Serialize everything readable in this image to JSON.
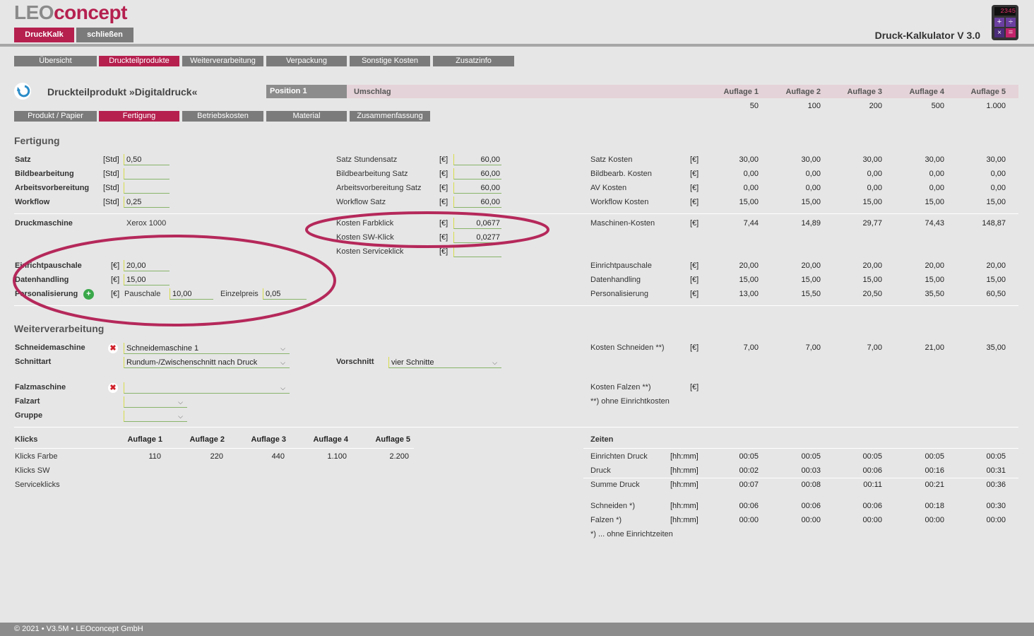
{
  "header": {
    "logo_part1": "LEO",
    "logo_part2": "concept",
    "btn_calc": "DruckKalk",
    "btn_close": "schließen",
    "app_title": "Druck-Kalkulator V 3.0",
    "calc_display": "2345"
  },
  "main_tabs": [
    "Übersicht",
    "Druckteilprodukte",
    "Weiterverarbeitung",
    "Verpackung",
    "Sonstige Kosten",
    "Zusatzinfo"
  ],
  "product": {
    "title": "Druckteilprodukt »Digitaldruck«",
    "position": "Position 1",
    "position_name": "Umschlag",
    "auflage_headers": [
      "Auflage 1",
      "Auflage 2",
      "Auflage 3",
      "Auflage 4",
      "Auflage 5"
    ],
    "auflage_values": [
      "50",
      "100",
      "200",
      "500",
      "1.000"
    ]
  },
  "sub_tabs": [
    "Produkt / Papier",
    "Fertigung",
    "Betriebskosten",
    "Material",
    "Zusammenfassung"
  ],
  "fertigung": {
    "title": "Fertigung",
    "left": [
      {
        "label": "Satz",
        "unit": "[Std]",
        "value": "0,50"
      },
      {
        "label": "Bildbearbeitung",
        "unit": "[Std]",
        "value": ""
      },
      {
        "label": "Arbeitsvorbereitung",
        "unit": "[Std]",
        "value": ""
      },
      {
        "label": "Workflow",
        "unit": "[Std]",
        "value": "0,25"
      }
    ],
    "mid": [
      {
        "label": "Satz Stundensatz",
        "unit": "[€]",
        "value": "60,00"
      },
      {
        "label": "Bildbearbeitung Satz",
        "unit": "[€]",
        "value": "60,00"
      },
      {
        "label": "Arbeitsvorbereitung Satz",
        "unit": "[€]",
        "value": "60,00"
      },
      {
        "label": "Workflow Satz",
        "unit": "[€]",
        "value": "60,00"
      }
    ],
    "right": [
      {
        "label": "Satz Kosten",
        "unit": "[€]",
        "values": [
          "30,00",
          "30,00",
          "30,00",
          "30,00",
          "30,00"
        ]
      },
      {
        "label": "Bildbearb. Kosten",
        "unit": "[€]",
        "values": [
          "0,00",
          "0,00",
          "0,00",
          "0,00",
          "0,00"
        ]
      },
      {
        "label": "AV Kosten",
        "unit": "[€]",
        "values": [
          "0,00",
          "0,00",
          "0,00",
          "0,00",
          "0,00"
        ]
      },
      {
        "label": "Workflow Kosten",
        "unit": "[€]",
        "values": [
          "15,00",
          "15,00",
          "15,00",
          "15,00",
          "15,00"
        ]
      }
    ],
    "druckmaschine_label": "Druckmaschine",
    "druckmaschine_value": "Xerox 1000",
    "klick_costs": [
      {
        "label": "Kosten Farbklick",
        "unit": "[€]",
        "value": "0,0677"
      },
      {
        "label": "Kosten SW-Klick",
        "unit": "[€]",
        "value": "0,0277"
      },
      {
        "label": "Kosten Serviceklick",
        "unit": "[€]",
        "value": ""
      }
    ],
    "maschinen_kosten": {
      "label": "Maschinen-Kosten",
      "unit": "[€]",
      "values": [
        "7,44",
        "14,89",
        "29,77",
        "74,43",
        "148,87"
      ]
    },
    "einricht": {
      "label": "Einrichtpauschale",
      "unit": "[€]",
      "value": "20,00"
    },
    "daten": {
      "label": "Datenhandling",
      "unit": "[€]",
      "value": "15,00"
    },
    "personal": {
      "label": "Personalisierung",
      "unit": "[€]",
      "pauschale_label": "Pauschale",
      "pauschale": "10,00",
      "einzel_label": "Einzelpreis",
      "einzel": "0,05"
    },
    "right2": [
      {
        "label": "Einrichtpauschale",
        "unit": "[€]",
        "values": [
          "20,00",
          "20,00",
          "20,00",
          "20,00",
          "20,00"
        ]
      },
      {
        "label": "Datenhandling",
        "unit": "[€]",
        "values": [
          "15,00",
          "15,00",
          "15,00",
          "15,00",
          "15,00"
        ]
      },
      {
        "label": "Personalisierung",
        "unit": "[€]",
        "values": [
          "13,00",
          "15,50",
          "20,50",
          "35,50",
          "60,50"
        ]
      }
    ]
  },
  "weiter": {
    "title": "Weiterverarbeitung",
    "schneidemaschine_label": "Schneidemaschine",
    "schneidemaschine": "Schneidemaschine 1",
    "schnittart_label": "Schnittart",
    "schnittart": "Rundum-/Zwischenschnitt nach Druck",
    "vorschnitt_label": "Vorschnitt",
    "vorschnitt": "vier Schnitte",
    "falzmaschine_label": "Falzmaschine",
    "falzart_label": "Falzart",
    "gruppe_label": "Gruppe",
    "kosten_schneiden": {
      "label": "Kosten Schneiden **)",
      "unit": "[€]",
      "values": [
        "7,00",
        "7,00",
        "7,00",
        "21,00",
        "35,00"
      ]
    },
    "kosten_falzen": {
      "label": "Kosten Falzen **)",
      "unit": "[€]"
    },
    "note": "**) ohne Einrichtkosten"
  },
  "klicks": {
    "title": "Klicks",
    "headers": [
      "Auflage 1",
      "Auflage 2",
      "Auflage 3",
      "Auflage 4",
      "Auflage 5"
    ],
    "rows": [
      {
        "label": "Klicks Farbe",
        "values": [
          "110",
          "220",
          "440",
          "1.100",
          "2.200"
        ]
      },
      {
        "label": "Klicks SW",
        "values": [
          "",
          "",
          "",
          "",
          ""
        ]
      },
      {
        "label": "Serviceklicks",
        "values": [
          "",
          "",
          "",
          "",
          ""
        ]
      }
    ]
  },
  "zeiten": {
    "title": "Zeiten",
    "rows": [
      {
        "label": "Einrichten Druck",
        "unit": "[hh:mm]",
        "values": [
          "00:05",
          "00:05",
          "00:05",
          "00:05",
          "00:05"
        ]
      },
      {
        "label": "Druck",
        "unit": "[hh:mm]",
        "values": [
          "00:02",
          "00:03",
          "00:06",
          "00:16",
          "00:31"
        ]
      },
      {
        "label": "Summe Druck",
        "unit": "[hh:mm]",
        "values": [
          "00:07",
          "00:08",
          "00:11",
          "00:21",
          "00:36"
        ]
      }
    ],
    "rows2": [
      {
        "label": "Schneiden *)",
        "unit": "[hh:mm]",
        "values": [
          "00:06",
          "00:06",
          "00:06",
          "00:18",
          "00:30"
        ]
      },
      {
        "label": "Falzen *)",
        "unit": "[hh:mm]",
        "values": [
          "00:00",
          "00:00",
          "00:00",
          "00:00",
          "00:00"
        ]
      }
    ],
    "note": "*) ... ohne Einrichtzeiten"
  },
  "footer": "© 2021 • V3.5M • LEOconcept GmbH",
  "colors": {
    "accent": "#b5204f",
    "tab_gray": "#7b7b7b",
    "highlight": "#b5285a"
  }
}
